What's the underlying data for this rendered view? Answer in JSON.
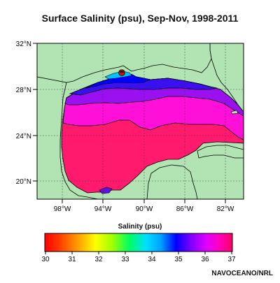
{
  "title": "Surface Salinity (psu),  Sep-Nov, 1998-2011",
  "lat_labels": [
    "32°N",
    "28°N",
    "24°N",
    "20°N"
  ],
  "lon_labels": [
    "98°W",
    "94°W",
    "90°W",
    "86°W",
    "82°W"
  ],
  "colorbar": {
    "title": "Salinity (psu)",
    "ticks": [
      "30",
      "31",
      "32",
      "33",
      "34",
      "35",
      "36",
      "37"
    ]
  },
  "credit": "NAVOCEANO/NRL",
  "colors": {
    "land": "#b2e3b2",
    "sal_37": "#ff1a6e",
    "sal_36_5": "#ff10d8",
    "sal_36": "#9a10f0",
    "sal_35": "#3a10f0",
    "sal_34": "#0000ff",
    "sal_33": "#00c0ff"
  }
}
